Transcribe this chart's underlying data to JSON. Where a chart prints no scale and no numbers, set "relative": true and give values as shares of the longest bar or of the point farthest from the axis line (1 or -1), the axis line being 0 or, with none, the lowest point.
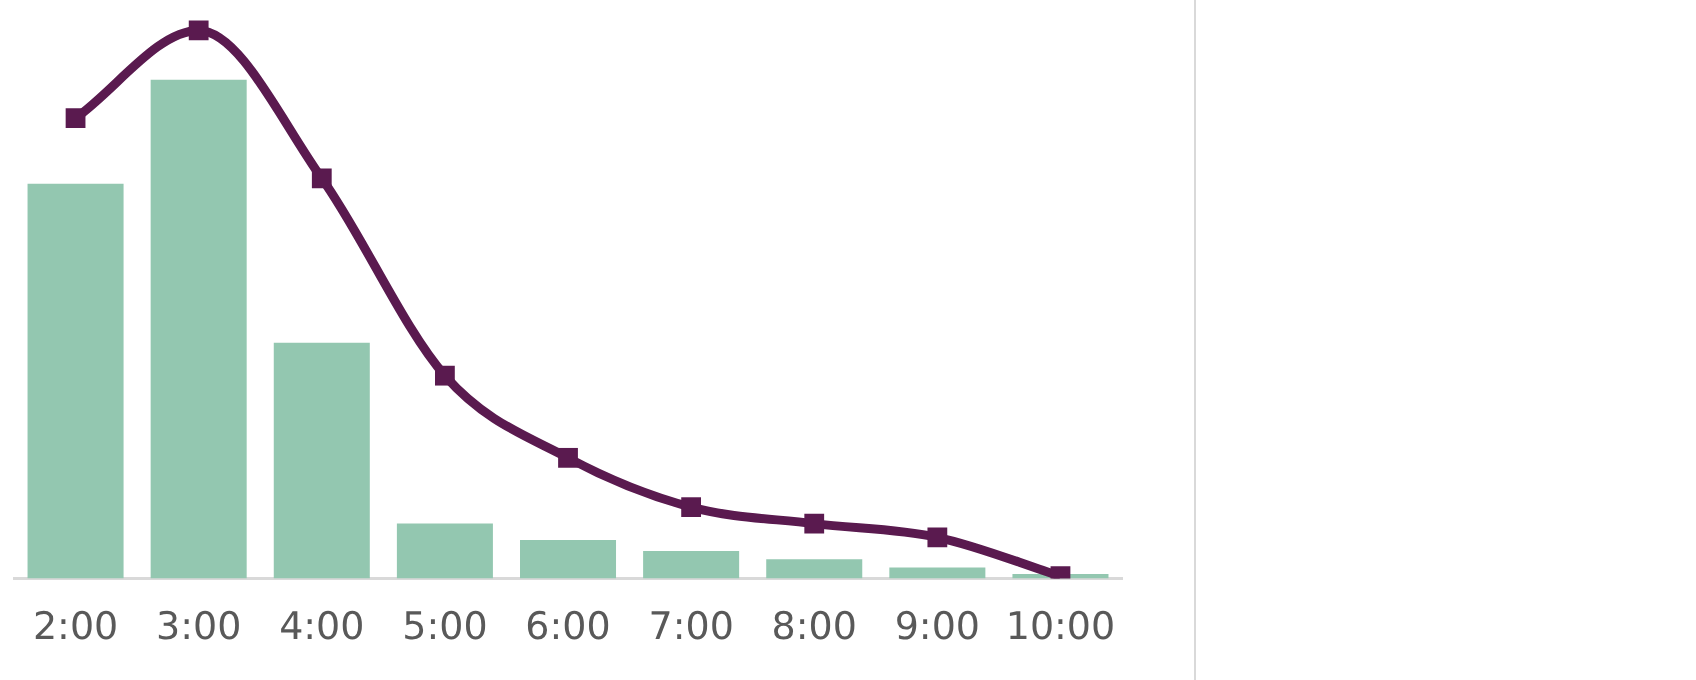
{
  "chart_data": {
    "type": "bar",
    "relative": true,
    "categories": [
      "2:00",
      "3:00",
      "4:00",
      "5:00",
      "6:00",
      "7:00",
      "8:00",
      "9:00",
      "10:00"
    ],
    "series": [
      {
        "type": "bar",
        "color": "#93c7b0",
        "values": [
          0.72,
          0.91,
          0.43,
          0.1,
          0.07,
          0.05,
          0.035,
          0.02,
          0.008
        ]
      },
      {
        "type": "line",
        "color": "#5a1a4f",
        "values": [
          0.84,
          1,
          0.73,
          0.37,
          0.22,
          0.13,
          0.1,
          0.075,
          0.004
        ]
      }
    ],
    "marker": "square",
    "line_style": "solid",
    "legend": false
  }
}
